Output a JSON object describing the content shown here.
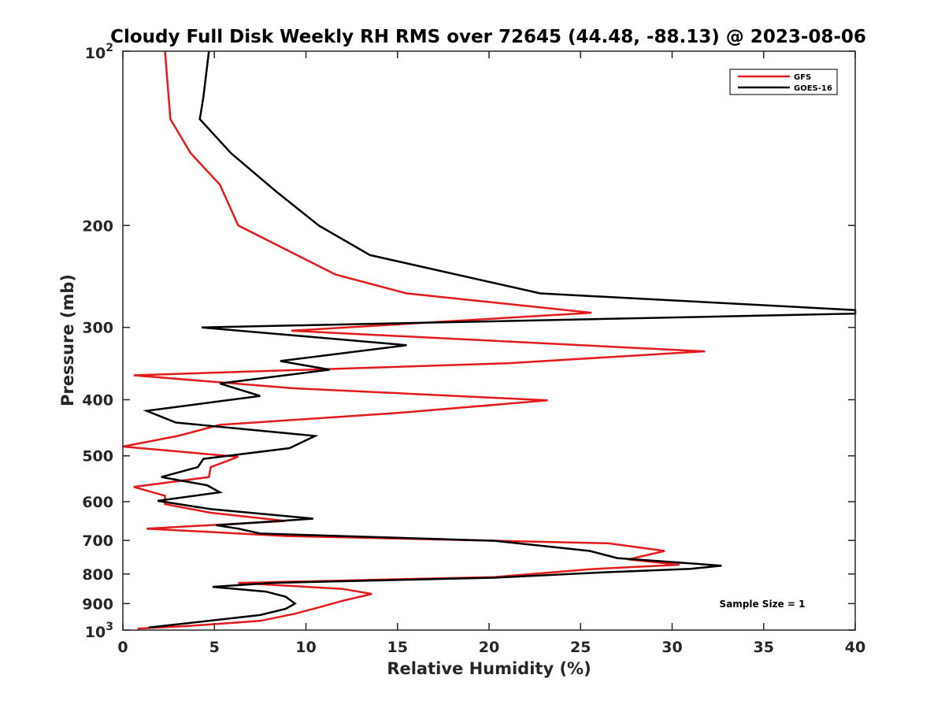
{
  "chart_data": {
    "type": "line",
    "title": "Cloudy Full Disk Weekly RH RMS over 72645 (44.48, -88.13) @ 2023-08-06",
    "xlabel": "Relative Humidity (%)",
    "ylabel": "Pressure (mb)",
    "xlim": [
      0,
      40
    ],
    "ylim": [
      100,
      1000
    ],
    "y_scale": "log",
    "y_reversed": true,
    "x_ticks": [
      "0",
      "5",
      "10",
      "15",
      "20",
      "25",
      "30",
      "35",
      "40"
    ],
    "y_ticks": [
      {
        "value": 100,
        "base": "10",
        "exp": "2"
      },
      {
        "value": 200,
        "label": "200"
      },
      {
        "value": 300,
        "label": "300"
      },
      {
        "value": 400,
        "label": "400"
      },
      {
        "value": 500,
        "label": "500"
      },
      {
        "value": 600,
        "label": "600"
      },
      {
        "value": 700,
        "label": "700"
      },
      {
        "value": 800,
        "label": "800"
      },
      {
        "value": 900,
        "label": "900"
      },
      {
        "value": 1000,
        "base": "10",
        "exp": "3"
      }
    ],
    "grid": false,
    "legend_position": "top-right",
    "annotation": "Sample Size = 1",
    "series": [
      {
        "name": "GFS",
        "color": "#e31a1c",
        "points": [
          [
            2.3,
            100
          ],
          [
            2.6,
            131
          ],
          [
            3.7,
            150
          ],
          [
            5.3,
            170
          ],
          [
            6.3,
            200
          ],
          [
            11.6,
            243
          ],
          [
            15.5,
            262
          ],
          [
            25.6,
            283
          ],
          [
            9.2,
            304
          ],
          [
            31.8,
            330
          ],
          [
            21.0,
            346
          ],
          [
            0.6,
            363
          ],
          [
            9.2,
            382
          ],
          [
            23.2,
            401
          ],
          [
            15.3,
            421
          ],
          [
            5.3,
            442
          ],
          [
            3.0,
            462
          ],
          [
            0.0,
            482
          ],
          [
            6.3,
            502
          ],
          [
            4.8,
            523
          ],
          [
            4.7,
            544
          ],
          [
            0.6,
            566
          ],
          [
            2.3,
            586
          ],
          [
            2.3,
            606
          ],
          [
            4.8,
            627
          ],
          [
            8.9,
            648
          ],
          [
            1.3,
            668
          ],
          [
            8.9,
            688
          ],
          [
            26.5,
            708
          ],
          [
            29.6,
            730
          ],
          [
            27.6,
            755
          ],
          [
            30.4,
            771
          ],
          [
            25.5,
            785
          ],
          [
            20.3,
            810
          ],
          [
            6.3,
            829
          ],
          [
            12.0,
            849
          ],
          [
            13.6,
            866
          ],
          [
            12.0,
            890
          ],
          [
            10.9,
            910
          ],
          [
            9.4,
            937
          ],
          [
            7.5,
            964
          ],
          [
            3.5,
            984
          ],
          [
            0.8,
            994
          ]
        ]
      },
      {
        "name": "GOES-16",
        "color": "#000000",
        "points": [
          [
            4.7,
            100
          ],
          [
            4.4,
            120
          ],
          [
            4.2,
            131
          ],
          [
            5.9,
            150
          ],
          [
            8.4,
            175
          ],
          [
            10.7,
            200
          ],
          [
            13.5,
            225
          ],
          [
            22.8,
            262
          ],
          [
            40.0,
            280
          ],
          [
            40.0,
            284
          ],
          [
            4.3,
            300
          ],
          [
            15.5,
            322
          ],
          [
            8.6,
            343
          ],
          [
            11.3,
            355
          ],
          [
            5.3,
            375
          ],
          [
            7.5,
            394
          ],
          [
            1.3,
            418
          ],
          [
            2.9,
            438
          ],
          [
            10.5,
            462
          ],
          [
            9.1,
            485
          ],
          [
            4.4,
            506
          ],
          [
            4.1,
            523
          ],
          [
            2.1,
            544
          ],
          [
            4.6,
            562
          ],
          [
            5.3,
            578
          ],
          [
            1.9,
            598
          ],
          [
            4.8,
            618
          ],
          [
            10.4,
            642
          ],
          [
            5.1,
            659
          ],
          [
            6.3,
            668
          ],
          [
            7.5,
            681
          ],
          [
            20.3,
            701
          ],
          [
            25.5,
            730
          ],
          [
            27.0,
            751
          ],
          [
            32.7,
            774
          ],
          [
            31.0,
            784
          ],
          [
            26.2,
            795
          ],
          [
            20.3,
            812
          ],
          [
            8.1,
            829
          ],
          [
            4.9,
            842
          ],
          [
            7.8,
            858
          ],
          [
            8.9,
            876
          ],
          [
            9.4,
            900
          ],
          [
            8.9,
            919
          ],
          [
            7.5,
            942
          ],
          [
            1.4,
            990
          ]
        ]
      }
    ]
  }
}
